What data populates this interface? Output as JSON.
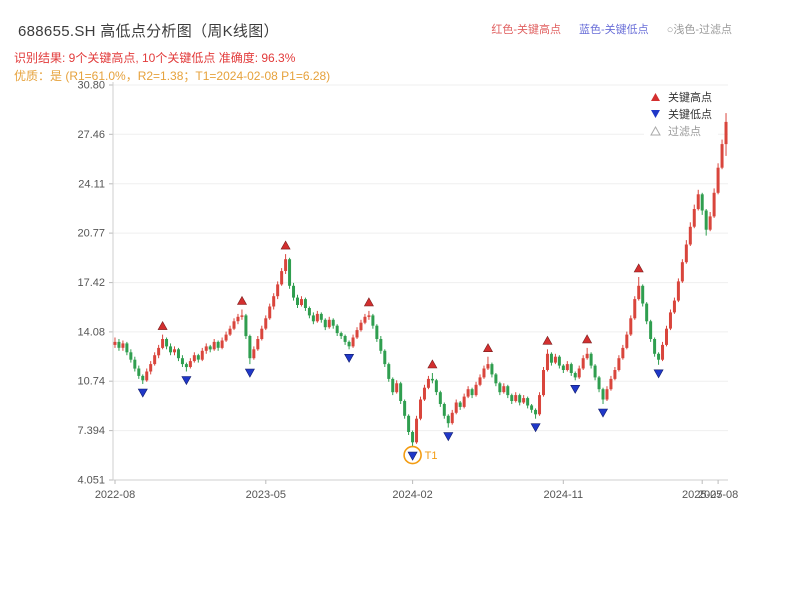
{
  "header": {
    "title": "688655.SH 高低点分析图（周K线图）",
    "legend_top": [
      {
        "text": "红色-关键高点",
        "color": "#e06060"
      },
      {
        "text": "蓝色-关键低点",
        "color": "#6a6fd8"
      },
      {
        "text": "○浅色-过滤点",
        "color": "#9a9a9a"
      }
    ],
    "result_line": "识别结果: 9个关键高点, 10个关键低点  准确度: 96.3%",
    "result_color": "#e23b3b",
    "quality_line": "优质：是 (R1=61.0%，R2=1.38；T1=2024-02-08 P1=6.28)",
    "quality_color": "#e6a23c"
  },
  "chart_data": {
    "type": "candlestick",
    "symbol": "688655.SH",
    "period": "周K线",
    "ylim": [
      4.051,
      30.8
    ],
    "y_ticks": [
      {
        "label": "30.80",
        "value": 30.8
      },
      {
        "label": "27.46",
        "value": 27.46
      },
      {
        "label": "24.11",
        "value": 24.11
      },
      {
        "label": "20.77",
        "value": 20.77
      },
      {
        "label": "17.42",
        "value": 17.42
      },
      {
        "label": "14.08",
        "value": 14.08
      },
      {
        "label": "10.74",
        "value": 10.74
      },
      {
        "label": "7.394",
        "value": 7.394
      },
      {
        "label": "4.051",
        "value": 4.051
      }
    ],
    "x_ticks": [
      {
        "label": "2022-08",
        "index": 0
      },
      {
        "label": "2023-05",
        "index": 38
      },
      {
        "label": "2024-02",
        "index": 75
      },
      {
        "label": "2024-11",
        "index": 113
      },
      {
        "label": "2025-07",
        "index": 148
      },
      {
        "label": "2025-08",
        "index": 152
      }
    ],
    "colors": {
      "up": "#d9453c",
      "down": "#2f9e4f",
      "key_high": "#d32f2f",
      "key_low": "#2038c8",
      "filtered": "#aaaaaa",
      "t1": "#f39c12",
      "grid": "#efefef",
      "axis": "#cfcfcf",
      "tick_text": "#555555"
    },
    "plot_legend": [
      {
        "label": "关键高点",
        "symbol": "triangle-up",
        "color": "#d32f2f"
      },
      {
        "label": "关键低点",
        "symbol": "triangle-down",
        "color": "#2038c8"
      },
      {
        "label": "过滤点",
        "symbol": "triangle-up-outline",
        "color": "#aaaaaa"
      }
    ],
    "key_highs": [
      {
        "index": 12,
        "price": 13.9
      },
      {
        "index": 32,
        "price": 15.6
      },
      {
        "index": 43,
        "price": 19.35
      },
      {
        "index": 64,
        "price": 15.5
      },
      {
        "index": 80,
        "price": 11.3
      },
      {
        "index": 94,
        "price": 12.4
      },
      {
        "index": 109,
        "price": 12.9
      },
      {
        "index": 119,
        "price": 13.0
      },
      {
        "index": 132,
        "price": 17.8
      }
    ],
    "key_lows": [
      {
        "index": 7,
        "price": 10.55
      },
      {
        "index": 18,
        "price": 11.4
      },
      {
        "index": 34,
        "price": 11.9
      },
      {
        "index": 59,
        "price": 12.9
      },
      {
        "index": 75,
        "price": 6.28
      },
      {
        "index": 84,
        "price": 7.6
      },
      {
        "index": 106,
        "price": 8.2
      },
      {
        "index": 116,
        "price": 10.8
      },
      {
        "index": 123,
        "price": 9.2
      },
      {
        "index": 137,
        "price": 11.85
      }
    ],
    "filtered_points": [],
    "t1_annotation": {
      "index": 75,
      "price": 6.28,
      "label": "T1"
    },
    "candles": [
      [
        13.2,
        13.7,
        13.0,
        13.4
      ],
      [
        13.4,
        13.6,
        12.8,
        13.0
      ],
      [
        13.0,
        13.5,
        12.8,
        13.3
      ],
      [
        13.3,
        13.4,
        12.5,
        12.7
      ],
      [
        12.7,
        12.9,
        12.0,
        12.2
      ],
      [
        12.2,
        12.4,
        11.4,
        11.6
      ],
      [
        11.6,
        11.8,
        10.9,
        11.1
      ],
      [
        11.1,
        11.2,
        10.55,
        10.8
      ],
      [
        10.8,
        11.6,
        10.7,
        11.4
      ],
      [
        11.4,
        12.1,
        11.2,
        11.9
      ],
      [
        11.9,
        12.7,
        11.8,
        12.5
      ],
      [
        12.5,
        13.2,
        12.3,
        13.0
      ],
      [
        13.0,
        13.9,
        12.9,
        13.6
      ],
      [
        13.6,
        13.7,
        12.9,
        13.1
      ],
      [
        13.1,
        13.3,
        12.5,
        12.7
      ],
      [
        12.7,
        13.1,
        12.5,
        12.9
      ],
      [
        12.9,
        13.0,
        12.1,
        12.3
      ],
      [
        12.3,
        12.5,
        11.7,
        11.9
      ],
      [
        11.9,
        12.0,
        11.4,
        11.7
      ],
      [
        11.7,
        12.3,
        11.6,
        12.1
      ],
      [
        12.1,
        12.7,
        12.0,
        12.5
      ],
      [
        12.5,
        12.6,
        12.0,
        12.2
      ],
      [
        12.2,
        13.0,
        12.1,
        12.8
      ],
      [
        12.8,
        13.3,
        12.6,
        13.1
      ],
      [
        13.1,
        13.2,
        12.7,
        12.9
      ],
      [
        12.9,
        13.6,
        12.8,
        13.4
      ],
      [
        13.4,
        13.5,
        12.8,
        13.0
      ],
      [
        13.0,
        13.7,
        12.9,
        13.5
      ],
      [
        13.5,
        14.1,
        13.4,
        13.9
      ],
      [
        13.9,
        14.5,
        13.8,
        14.3
      ],
      [
        14.3,
        15.0,
        14.2,
        14.8
      ],
      [
        14.8,
        15.3,
        14.6,
        15.1
      ],
      [
        15.1,
        15.6,
        14.9,
        15.2
      ],
      [
        15.2,
        15.3,
        13.6,
        13.8
      ],
      [
        13.8,
        13.9,
        11.9,
        12.3
      ],
      [
        12.3,
        13.1,
        12.2,
        12.9
      ],
      [
        12.9,
        13.8,
        12.8,
        13.6
      ],
      [
        13.6,
        14.5,
        13.5,
        14.3
      ],
      [
        14.3,
        15.2,
        14.2,
        15.0
      ],
      [
        15.0,
        16.0,
        14.9,
        15.8
      ],
      [
        15.8,
        16.7,
        15.6,
        16.5
      ],
      [
        16.5,
        17.5,
        16.3,
        17.3
      ],
      [
        17.3,
        18.4,
        17.2,
        18.2
      ],
      [
        18.2,
        19.35,
        18.0,
        19.0
      ],
      [
        19.0,
        19.1,
        17.0,
        17.2
      ],
      [
        17.2,
        17.4,
        16.2,
        16.4
      ],
      [
        16.4,
        16.6,
        15.7,
        15.9
      ],
      [
        15.9,
        16.5,
        15.8,
        16.3
      ],
      [
        16.3,
        16.4,
        15.5,
        15.7
      ],
      [
        15.7,
        15.8,
        15.0,
        15.2
      ],
      [
        15.2,
        15.4,
        14.6,
        14.8
      ],
      [
        14.8,
        15.5,
        14.7,
        15.3
      ],
      [
        15.3,
        15.4,
        14.7,
        14.9
      ],
      [
        14.9,
        15.0,
        14.2,
        14.4
      ],
      [
        14.4,
        15.1,
        14.3,
        14.9
      ],
      [
        14.9,
        15.0,
        14.3,
        14.5
      ],
      [
        14.5,
        14.6,
        13.8,
        14.0
      ],
      [
        14.0,
        14.1,
        13.6,
        13.8
      ],
      [
        13.8,
        13.9,
        13.2,
        13.4
      ],
      [
        13.4,
        13.5,
        12.9,
        13.1
      ],
      [
        13.1,
        13.9,
        13.0,
        13.7
      ],
      [
        13.7,
        14.4,
        13.6,
        14.2
      ],
      [
        14.2,
        14.9,
        14.1,
        14.7
      ],
      [
        14.7,
        15.3,
        14.6,
        15.1
      ],
      [
        15.1,
        15.5,
        14.9,
        15.2
      ],
      [
        15.2,
        15.3,
        14.3,
        14.5
      ],
      [
        14.5,
        14.6,
        13.4,
        13.6
      ],
      [
        13.6,
        13.8,
        12.6,
        12.8
      ],
      [
        12.8,
        12.9,
        11.7,
        11.9
      ],
      [
        11.9,
        12.0,
        10.7,
        10.9
      ],
      [
        10.9,
        11.0,
        9.8,
        10.0
      ],
      [
        10.0,
        10.8,
        9.9,
        10.6
      ],
      [
        10.6,
        10.7,
        9.2,
        9.4
      ],
      [
        9.4,
        9.5,
        8.2,
        8.4
      ],
      [
        8.4,
        8.5,
        7.1,
        7.3
      ],
      [
        7.3,
        7.4,
        6.28,
        6.6
      ],
      [
        6.6,
        8.4,
        6.5,
        8.2
      ],
      [
        8.2,
        9.7,
        8.1,
        9.5
      ],
      [
        9.5,
        10.5,
        9.4,
        10.3
      ],
      [
        10.3,
        11.1,
        10.2,
        10.9
      ],
      [
        10.9,
        11.3,
        10.6,
        10.8
      ],
      [
        10.8,
        10.9,
        9.8,
        10.0
      ],
      [
        10.0,
        10.1,
        9.0,
        9.2
      ],
      [
        9.2,
        9.3,
        8.2,
        8.4
      ],
      [
        8.4,
        8.5,
        7.6,
        7.9
      ],
      [
        7.9,
        8.8,
        7.8,
        8.6
      ],
      [
        8.6,
        9.5,
        8.5,
        9.3
      ],
      [
        9.3,
        9.4,
        8.8,
        9.0
      ],
      [
        9.0,
        9.9,
        8.9,
        9.7
      ],
      [
        9.7,
        10.4,
        9.6,
        10.2
      ],
      [
        10.2,
        10.3,
        9.6,
        9.8
      ],
      [
        9.8,
        10.7,
        9.7,
        10.5
      ],
      [
        10.5,
        11.2,
        10.4,
        11.0
      ],
      [
        11.0,
        11.8,
        10.9,
        11.6
      ],
      [
        11.6,
        12.4,
        11.5,
        11.9
      ],
      [
        11.9,
        12.0,
        11.0,
        11.2
      ],
      [
        11.2,
        11.3,
        10.4,
        10.6
      ],
      [
        10.6,
        10.7,
        9.8,
        10.0
      ],
      [
        10.0,
        10.6,
        9.9,
        10.4
      ],
      [
        10.4,
        10.5,
        9.6,
        9.8
      ],
      [
        9.8,
        9.9,
        9.2,
        9.4
      ],
      [
        9.4,
        10.0,
        9.3,
        9.8
      ],
      [
        9.8,
        9.9,
        9.1,
        9.3
      ],
      [
        9.3,
        9.8,
        9.2,
        9.6
      ],
      [
        9.6,
        9.7,
        8.9,
        9.1
      ],
      [
        9.1,
        9.2,
        8.6,
        8.8
      ],
      [
        8.8,
        8.9,
        8.2,
        8.5
      ],
      [
        8.5,
        10.0,
        8.4,
        9.8
      ],
      [
        9.8,
        11.7,
        9.7,
        11.5
      ],
      [
        11.5,
        12.9,
        11.4,
        12.6
      ],
      [
        12.6,
        12.7,
        11.8,
        12.0
      ],
      [
        12.0,
        12.6,
        11.9,
        12.4
      ],
      [
        12.4,
        12.5,
        11.6,
        11.8
      ],
      [
        11.8,
        11.9,
        11.3,
        11.5
      ],
      [
        11.5,
        12.1,
        11.4,
        11.9
      ],
      [
        11.9,
        12.0,
        11.1,
        11.3
      ],
      [
        11.3,
        11.4,
        10.8,
        11.0
      ],
      [
        11.0,
        11.8,
        10.9,
        11.6
      ],
      [
        11.6,
        12.5,
        11.5,
        12.3
      ],
      [
        12.3,
        13.0,
        12.2,
        12.6
      ],
      [
        12.6,
        12.7,
        11.6,
        11.8
      ],
      [
        11.8,
        11.9,
        10.8,
        11.0
      ],
      [
        11.0,
        11.1,
        10.0,
        10.2
      ],
      [
        10.2,
        10.3,
        9.2,
        9.5
      ],
      [
        9.5,
        10.4,
        9.4,
        10.2
      ],
      [
        10.2,
        11.1,
        10.1,
        10.9
      ],
      [
        10.9,
        11.7,
        10.8,
        11.5
      ],
      [
        11.5,
        12.5,
        11.4,
        12.3
      ],
      [
        12.3,
        13.2,
        12.2,
        13.0
      ],
      [
        13.0,
        14.1,
        12.9,
        13.9
      ],
      [
        13.9,
        15.2,
        13.8,
        15.0
      ],
      [
        15.0,
        16.5,
        14.9,
        16.3
      ],
      [
        16.3,
        17.8,
        16.2,
        17.2
      ],
      [
        17.2,
        17.3,
        15.8,
        16.0
      ],
      [
        16.0,
        16.1,
        14.6,
        14.8
      ],
      [
        14.8,
        14.9,
        13.4,
        13.6
      ],
      [
        13.6,
        13.7,
        12.4,
        12.6
      ],
      [
        12.6,
        12.7,
        11.85,
        12.2
      ],
      [
        12.2,
        13.4,
        12.1,
        13.2
      ],
      [
        13.2,
        14.5,
        13.1,
        14.3
      ],
      [
        14.3,
        15.6,
        14.2,
        15.4
      ],
      [
        15.4,
        16.4,
        15.3,
        16.2
      ],
      [
        16.2,
        17.7,
        16.1,
        17.5
      ],
      [
        17.5,
        19.0,
        17.4,
        18.8
      ],
      [
        18.8,
        20.3,
        18.7,
        20.0
      ],
      [
        20.0,
        21.5,
        19.9,
        21.2
      ],
      [
        21.2,
        22.7,
        21.1,
        22.4
      ],
      [
        22.4,
        23.7,
        22.3,
        23.4
      ],
      [
        23.4,
        23.5,
        22.0,
        22.3
      ],
      [
        22.3,
        22.4,
        20.6,
        21.0
      ],
      [
        21.0,
        22.2,
        20.9,
        21.9
      ],
      [
        21.9,
        23.8,
        21.8,
        23.5
      ],
      [
        23.5,
        25.5,
        23.4,
        25.2
      ],
      [
        25.2,
        27.1,
        25.1,
        26.8
      ],
      [
        26.8,
        28.9,
        26.0,
        28.3
      ]
    ]
  }
}
